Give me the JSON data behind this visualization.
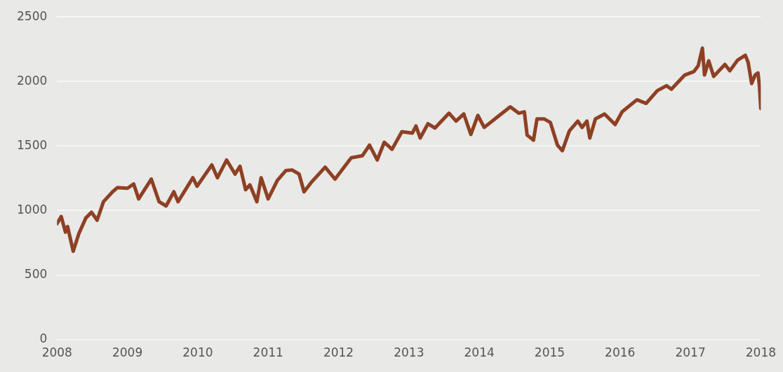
{
  "chart_data": {
    "type": "line",
    "x": [
      2008.0,
      2008.06,
      2008.12,
      2008.15,
      2008.23,
      2008.31,
      2008.41,
      2008.49,
      2008.57,
      2008.66,
      2008.79,
      2008.86,
      2009.0,
      2009.09,
      2009.16,
      2009.34,
      2009.45,
      2009.55,
      2009.66,
      2009.72,
      2009.93,
      2009.99,
      2010.2,
      2010.28,
      2010.41,
      2010.53,
      2010.6,
      2010.68,
      2010.74,
      2010.84,
      2010.9,
      2011.0,
      2011.13,
      2011.25,
      2011.34,
      2011.44,
      2011.51,
      2011.61,
      2011.81,
      2011.95,
      2012.18,
      2012.34,
      2012.44,
      2012.55,
      2012.65,
      2012.76,
      2012.9,
      2013.05,
      2013.1,
      2013.16,
      2013.27,
      2013.37,
      2013.57,
      2013.67,
      2013.78,
      2013.88,
      2013.98,
      2014.07,
      2014.26,
      2014.44,
      2014.56,
      2014.64,
      2014.68,
      2014.77,
      2014.82,
      2014.92,
      2015.01,
      2015.11,
      2015.18,
      2015.28,
      2015.4,
      2015.46,
      2015.53,
      2015.57,
      2015.65,
      2015.78,
      2015.93,
      2016.03,
      2016.24,
      2016.37,
      2016.53,
      2016.66,
      2016.73,
      2016.92,
      2017.05,
      2017.11,
      2017.17,
      2017.2,
      2017.26,
      2017.33,
      2017.49,
      2017.56,
      2017.67,
      2017.78,
      2017.82,
      2017.87,
      2017.92,
      2017.96,
      2017.98,
      2018.0
    ],
    "series": [
      {
        "color": "#8e4024",
        "values": [
          898,
          953,
          832,
          876,
          684,
          821,
          942,
          986,
          925,
          1068,
          1145,
          1178,
          1172,
          1205,
          1090,
          1243,
          1068,
          1035,
          1145,
          1068,
          1254,
          1188,
          1353,
          1254,
          1391,
          1282,
          1342,
          1161,
          1199,
          1068,
          1254,
          1090,
          1233,
          1309,
          1314,
          1282,
          1145,
          1216,
          1336,
          1243,
          1408,
          1425,
          1507,
          1391,
          1529,
          1474,
          1611,
          1600,
          1655,
          1562,
          1672,
          1639,
          1754,
          1693,
          1748,
          1589,
          1737,
          1644,
          1726,
          1803,
          1754,
          1765,
          1584,
          1545,
          1710,
          1710,
          1682,
          1507,
          1463,
          1617,
          1693,
          1644,
          1693,
          1562,
          1710,
          1748,
          1666,
          1765,
          1858,
          1830,
          1929,
          1967,
          1940,
          2050,
          2077,
          2121,
          2258,
          2050,
          2160,
          2039,
          2132,
          2083,
          2165,
          2203,
          2148,
          1984,
          2050,
          2066,
          1967,
          1790
        ]
      }
    ],
    "xlim": [
      2008,
      2018
    ],
    "xticks": [
      2008,
      2009,
      2010,
      2011,
      2012,
      2013,
      2014,
      2015,
      2016,
      2017,
      2018
    ],
    "ylim": [
      0,
      2500
    ],
    "yticks": [
      0,
      500,
      1000,
      1500,
      2000,
      2500
    ],
    "grid": "y",
    "legend": false,
    "marker": "none",
    "line_style": "solid"
  }
}
